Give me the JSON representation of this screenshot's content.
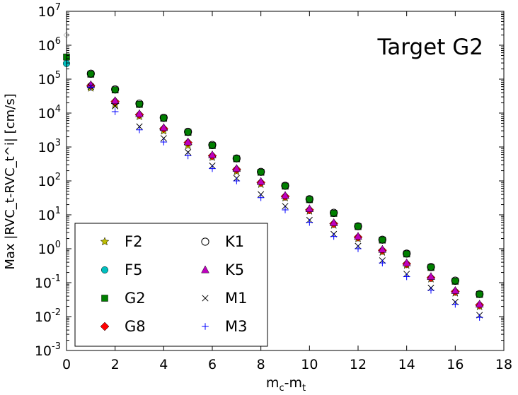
{
  "chart_data": {
    "type": "scatter",
    "title": "",
    "annotation": "Target G2",
    "xlabel_main": "m",
    "xlabel_sub1": "c",
    "xlabel_mid": "-m",
    "xlabel_sub2": "t",
    "ylabel": "Max |RVC_t-RVC_t^i|  [cm/s]",
    "xlim": [
      0,
      18
    ],
    "ylim_log10": [
      -3,
      7
    ],
    "y_scale": "log",
    "x_ticks": [
      0,
      2,
      4,
      6,
      8,
      10,
      12,
      14,
      16,
      18
    ],
    "y_ticks_exp": [
      -3,
      -2,
      -1,
      0,
      1,
      2,
      3,
      4,
      5,
      6,
      7
    ],
    "x": [
      1,
      2,
      3,
      4,
      5,
      6,
      7,
      8,
      9,
      10,
      11,
      12,
      13,
      14,
      15,
      16,
      17
    ],
    "legend_position": "lower-left",
    "series": [
      {
        "name": "F2",
        "marker": "star",
        "color": "#bfbf00",
        "x0_value": null,
        "values": [
          55000,
          18000,
          8000,
          3000,
          1100,
          500,
          190,
          80,
          32,
          13,
          5,
          2.0,
          0.8,
          0.33,
          0.13,
          0.05,
          0.02
        ]
      },
      {
        "name": "F5",
        "marker": "circle",
        "color": "#00bfbf",
        "x0_value": 290000,
        "values": [
          140000,
          48000,
          18000,
          7000,
          2700,
          1100,
          450,
          180,
          70,
          28,
          11,
          4.5,
          1.8,
          0.7,
          0.28,
          0.11,
          0.045
        ]
      },
      {
        "name": "G2",
        "marker": "square",
        "color": "#008000",
        "x0_value": 450000,
        "values": [
          140000,
          48000,
          18000,
          7000,
          2700,
          1100,
          450,
          180,
          70,
          28,
          11,
          4.5,
          1.8,
          0.7,
          0.28,
          0.11,
          0.045
        ]
      },
      {
        "name": "G8",
        "marker": "diamond",
        "color": "#ff0000",
        "x0_value": null,
        "values": [
          65000,
          22000,
          9000,
          3500,
          1350,
          550,
          220,
          90,
          35,
          14,
          5.5,
          2.2,
          0.9,
          0.36,
          0.14,
          0.055,
          0.022
        ]
      },
      {
        "name": "K1",
        "marker": "circle-open",
        "color": "#000000",
        "x0_value": null,
        "values": [
          145000,
          50000,
          19000,
          7300,
          2800,
          1150,
          460,
          185,
          72,
          29,
          11.5,
          4.6,
          1.85,
          0.72,
          0.29,
          0.115,
          0.046
        ]
      },
      {
        "name": "K5",
        "marker": "triangle",
        "color": "#bf00bf",
        "x0_value": null,
        "values": [
          68000,
          23000,
          9500,
          3700,
          1400,
          580,
          230,
          95,
          37,
          15,
          5.8,
          2.3,
          0.95,
          0.38,
          0.15,
          0.058,
          0.023
        ]
      },
      {
        "name": "M1",
        "marker": "x",
        "color": "#000000",
        "x0_value": null,
        "values": [
          60000,
          16000,
          4000,
          1800,
          700,
          280,
          120,
          40,
          18,
          7,
          2.7,
          1.2,
          0.45,
          0.18,
          0.07,
          0.027,
          0.011
        ]
      },
      {
        "name": "M3",
        "marker": "plus",
        "color": "#0000ff",
        "x0_value": null,
        "values": [
          58000,
          11000,
          3200,
          1400,
          550,
          230,
          100,
          32,
          14,
          6,
          2.3,
          1.0,
          0.38,
          0.15,
          0.06,
          0.023,
          0.0095
        ]
      }
    ]
  }
}
